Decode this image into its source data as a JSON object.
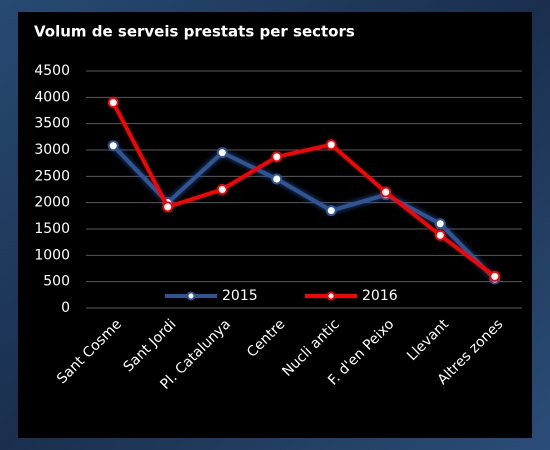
{
  "chart_data": {
    "type": "line",
    "title": "Volum de serveis prestats per sectors",
    "categories": [
      "Sant Cosme",
      "Sant Jordi",
      "Pl. Catalunya",
      "Centre",
      "Nucli antic",
      "F. d'en Peixo",
      "Llevant",
      "Altres zones"
    ],
    "series": [
      {
        "name": "2015",
        "color": "#2f5597",
        "values": [
          3080,
          2000,
          2950,
          2450,
          1850,
          2150,
          1600,
          550
        ]
      },
      {
        "name": "2016",
        "color": "#ff0000",
        "values": [
          3900,
          1920,
          2250,
          2870,
          3100,
          2200,
          1380,
          600
        ]
      }
    ],
    "ylim": [
      0,
      4500
    ],
    "yticks": [
      0,
      500,
      1000,
      1500,
      2000,
      2500,
      3000,
      3500,
      4000,
      4500
    ],
    "grid": true,
    "legend": "bottom"
  }
}
